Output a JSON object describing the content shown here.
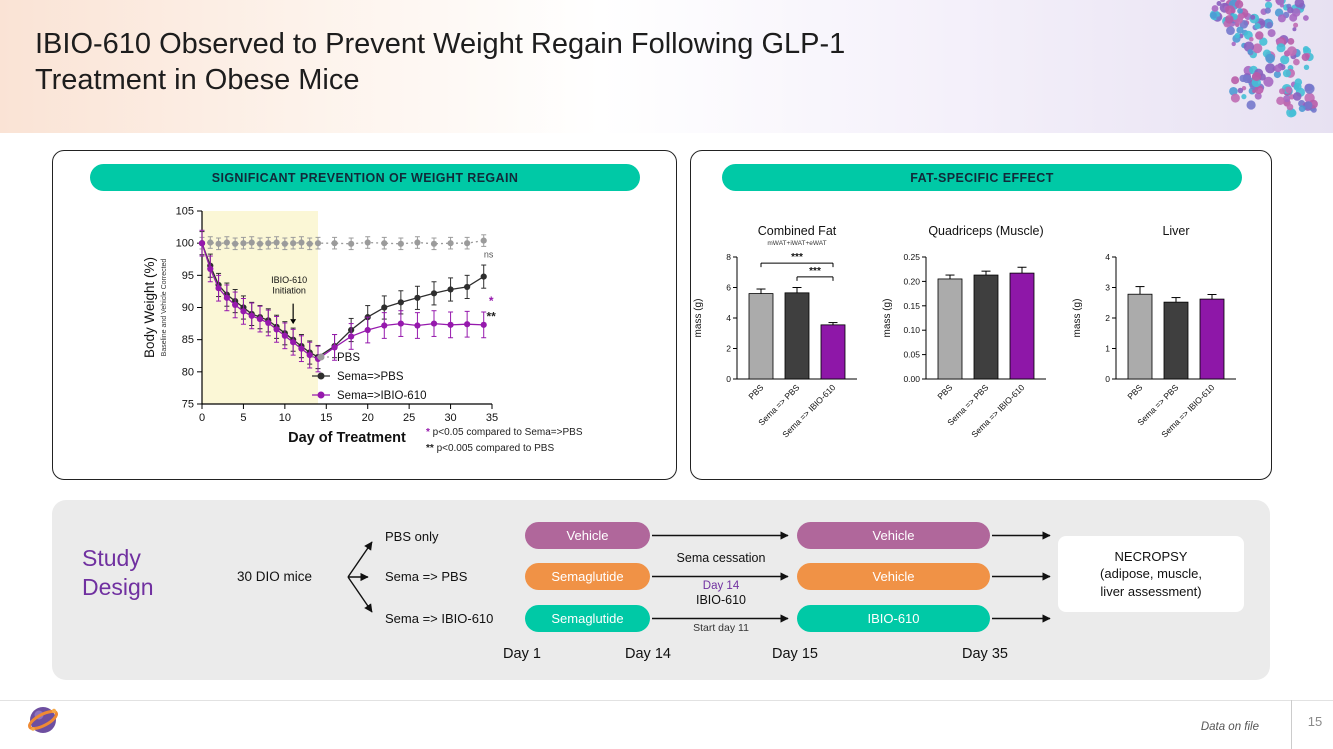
{
  "header": {
    "title_line1": "IBIO-610 Observed to Prevent Weight Regain Following GLP-1",
    "title_line2": "Treatment in Obese Mice"
  },
  "colors": {
    "teal": "#00C9A6",
    "purple_label": "#7030A0"
  },
  "panels": {
    "weight": {
      "header": "SIGNIFICANT PREVENTION OF WEIGHT REGAIN"
    },
    "fat": {
      "header": "FAT-SPECIFIC EFFECT"
    }
  },
  "chart_data": [
    {
      "type": "line",
      "xlabel": "Day of Treatment",
      "ylabel": "Body Weight (%)",
      "ylabel_sub": "Baseline and Vehicle Corrected",
      "xlim": [
        0,
        35
      ],
      "ylim": [
        75,
        105
      ],
      "xticks": [
        0,
        5,
        10,
        15,
        20,
        25,
        30,
        35
      ],
      "yticks": [
        75,
        80,
        85,
        90,
        95,
        100,
        105
      ],
      "shaded_region": {
        "x0": 0,
        "x1": 14,
        "color": "#FBF7D6"
      },
      "x": [
        0,
        1,
        2,
        3,
        4,
        5,
        6,
        7,
        8,
        9,
        10,
        11,
        12,
        13,
        14,
        16,
        18,
        20,
        22,
        24,
        26,
        28,
        30,
        32,
        34
      ],
      "series": [
        {
          "name": "PBS",
          "color": "#9B9B9B",
          "dashed": true,
          "err": 0.9,
          "values": [
            100,
            100.1,
            99.9,
            100.1,
            99.9,
            100,
            100.1,
            99.9,
            100,
            100.1,
            99.9,
            100,
            100.1,
            99.9,
            100,
            100,
            99.9,
            100.1,
            100,
            99.9,
            100.1,
            99.9,
            100,
            100,
            100.4
          ]
        },
        {
          "name": "Sema=>PBS",
          "color": "#2E2E2E",
          "dashed": false,
          "err": 1.8,
          "values": [
            100,
            96.5,
            93.5,
            92,
            91,
            90,
            89,
            88.5,
            88,
            87,
            86,
            85,
            84,
            83,
            82.3,
            84,
            86.5,
            88.5,
            90,
            90.8,
            91.5,
            92.2,
            92.8,
            93.2,
            94.8
          ]
        },
        {
          "name": "Sema=>IBIO-610",
          "color": "#9619AD",
          "dashed": false,
          "err": 2,
          "values": [
            100,
            96,
            93,
            91.5,
            90.4,
            89.4,
            88.7,
            88.2,
            87.6,
            86.6,
            85.6,
            84.6,
            83.6,
            82.6,
            82,
            83.8,
            85.5,
            86.5,
            87.2,
            87.5,
            87.2,
            87.5,
            87.3,
            87.4,
            87.3
          ]
        }
      ],
      "annotation": {
        "line1": "IBIO-610",
        "line2": "Initiation",
        "x": 11,
        "text_y1": 93.8,
        "text_y2": 92.2,
        "arrow_from_y": 90.6,
        "arrow_to_y": 88.2
      },
      "annotations": [
        {
          "text": "ns",
          "x": 34.6,
          "y": 97.8,
          "color": "#555555",
          "size": 9,
          "bold": false
        },
        {
          "text": "*",
          "x": 34.9,
          "y": 90.4,
          "color": "#9619AD",
          "size": 12,
          "bold": true
        },
        {
          "text": "**",
          "x": 34.9,
          "y": 88.0,
          "color": "#222222",
          "size": 12,
          "bold": true
        }
      ],
      "footnotes": [
        {
          "marker": "*",
          "marker_color": "#9619AD",
          "text": "p<0.05 compared to Sema=>PBS"
        },
        {
          "marker": "**",
          "marker_color": "#222222",
          "text": "p<0.005 compared to PBS"
        }
      ]
    },
    {
      "type": "bar",
      "title": "Combined Fat",
      "subtitle": "mWAT+iWAT+eWAT",
      "ylabel": "mass (g)",
      "ylim": [
        0,
        8
      ],
      "yticks": [
        0,
        2,
        4,
        6,
        8
      ],
      "ytick_labels": [
        "0",
        "2",
        "4",
        "6",
        "8"
      ],
      "categories": [
        "PBS",
        "Sema => PBS",
        "Sema => IBIO-610"
      ],
      "values": [
        5.6,
        5.65,
        3.55
      ],
      "errors": [
        0.3,
        0.35,
        0.15
      ],
      "colors": [
        "#ABABAB",
        "#3F3F3F",
        "#8E17A8"
      ],
      "sig_brackets": [
        {
          "from": 0,
          "to": 2,
          "y": 7.6,
          "label": "***"
        },
        {
          "from": 1,
          "to": 2,
          "y": 6.7,
          "label": "***"
        }
      ]
    },
    {
      "type": "bar",
      "title": "Quadriceps (Muscle)",
      "subtitle": "",
      "ylabel": "mass (g)",
      "ylim": [
        0,
        0.25
      ],
      "yticks": [
        0,
        0.05,
        0.1,
        0.15,
        0.2,
        0.25
      ],
      "ytick_labels": [
        "0.00",
        "0.05",
        "0.10",
        "0.15",
        "0.20",
        "0.25"
      ],
      "categories": [
        "PBS",
        "Sema => PBS",
        "Sema => IBIO-610"
      ],
      "values": [
        0.205,
        0.213,
        0.217
      ],
      "errors": [
        0.008,
        0.008,
        0.012
      ],
      "colors": [
        "#ABABAB",
        "#3F3F3F",
        "#8E17A8"
      ],
      "sig_brackets": []
    },
    {
      "type": "bar",
      "title": "Liver",
      "subtitle": "",
      "ylabel": "mass (g)",
      "ylim": [
        0,
        4
      ],
      "yticks": [
        0,
        1,
        2,
        3,
        4
      ],
      "ytick_labels": [
        "0",
        "1",
        "2",
        "3",
        "4"
      ],
      "categories": [
        "PBS",
        "Sema => PBS",
        "Sema => IBIO-610"
      ],
      "values": [
        2.78,
        2.52,
        2.62
      ],
      "errors": [
        0.25,
        0.15,
        0.15
      ],
      "colors": [
        "#ABABAB",
        "#3F3F3F",
        "#8E17A8"
      ],
      "sig_brackets": []
    }
  ],
  "study_design": {
    "label_line1": "Study",
    "label_line2": "Design",
    "cohort": "30 DIO mice",
    "arms": [
      "PBS only",
      "Sema => PBS",
      "Sema => IBIO-610"
    ],
    "rows": [
      {
        "pill1": "Vehicle",
        "color1": "#B0679B",
        "mid_top": "",
        "mid_bottom": "",
        "pill2": "Vehicle",
        "color2": "#B0679B"
      },
      {
        "pill1": "Semaglutide",
        "color1": "#F09246",
        "mid_top": "Sema cessation",
        "mid_bottom": "Day 14",
        "mid_bottom_color": "#7030A0",
        "pill2": "Vehicle",
        "color2": "#F09246"
      },
      {
        "pill1": "Semaglutide",
        "color1": "#00C9A6",
        "mid_top": "IBIO-610",
        "mid_bottom": "Start day 11",
        "mid_bottom_color": "#333333",
        "pill2": "IBIO-610",
        "color2": "#00C9A6"
      }
    ],
    "necropsy": [
      "NECROPSY",
      "(adipose, muscle,",
      "liver assessment)"
    ],
    "timeline": [
      "Day 1",
      "Day 14",
      "Day 15",
      "Day 35"
    ]
  },
  "footer": {
    "note": "Data on file",
    "page": "15"
  }
}
